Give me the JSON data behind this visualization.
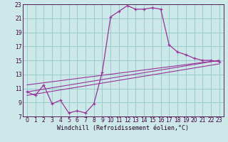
{
  "xlabel": "Windchill (Refroidissement éolien,°C)",
  "bg_color": "#cce8e8",
  "line_color": "#993399",
  "grid_color": "#99cccc",
  "curve1_x": [
    0,
    1,
    2,
    3,
    4,
    5,
    6,
    7,
    8,
    9,
    10,
    11,
    12,
    13,
    14,
    15,
    16,
    17,
    18,
    19,
    20,
    21,
    22,
    23
  ],
  "curve1_y": [
    10.5,
    10.0,
    11.5,
    8.8,
    9.3,
    7.5,
    7.8,
    7.5,
    8.8,
    13.3,
    21.2,
    22.0,
    22.8,
    22.3,
    22.3,
    22.5,
    22.3,
    17.2,
    16.2,
    15.8,
    15.3,
    15.0,
    15.0,
    14.8
  ],
  "line2_x": [
    0,
    23
  ],
  "line2_y": [
    10.5,
    15.0
  ],
  "line3_x": [
    0,
    23
  ],
  "line3_y": [
    11.5,
    15.0
  ],
  "line4_x": [
    0,
    23
  ],
  "line4_y": [
    10.0,
    14.5
  ],
  "xlim": [
    -0.5,
    23.5
  ],
  "ylim": [
    7,
    23
  ],
  "xticks": [
    0,
    1,
    2,
    3,
    4,
    5,
    6,
    7,
    8,
    9,
    10,
    11,
    12,
    13,
    14,
    15,
    16,
    17,
    18,
    19,
    20,
    21,
    22,
    23
  ],
  "yticks": [
    7,
    9,
    11,
    13,
    15,
    17,
    19,
    21,
    23
  ]
}
